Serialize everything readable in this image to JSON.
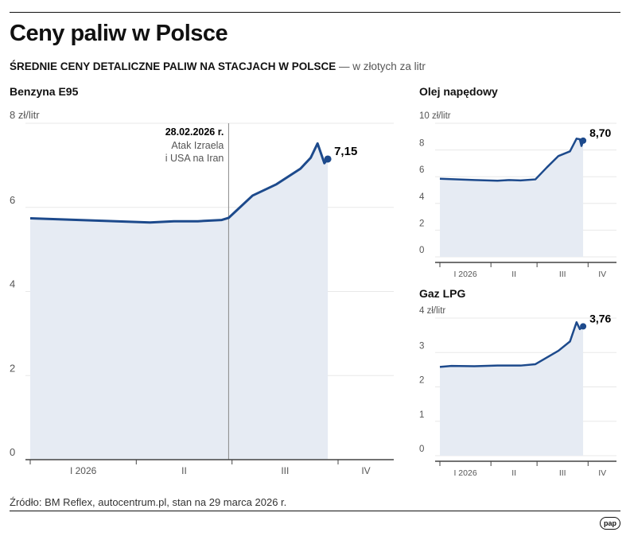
{
  "title": "Ceny paliw w Polsce",
  "subtitle": "ŚREDNIE CENY DETALICZNE PALIW NA STACJACH W POLSCE",
  "subtitle_unit": "— w złotych za litr",
  "source": "Źródło: BM Reflex, autocentrum.pl, stan na 29 marca 2026 r.",
  "logo": "pap",
  "colors": {
    "line": "#1d4a8c",
    "fill": "#e6ebf3",
    "grid": "#e8e8e8"
  },
  "chart_data": [
    {
      "type": "area",
      "title": "Benzyna E95",
      "unit_label": "8 zł/litr",
      "ylim": [
        0,
        8
      ],
      "yticks": [
        "0",
        "2",
        "4",
        "6"
      ],
      "xticks": [
        "I 2026",
        "II",
        "III",
        "IV"
      ],
      "x": [
        "2026-01-01",
        "2026-01-22",
        "2026-02-05",
        "2026-02-12",
        "2026-02-19",
        "2026-02-26",
        "2026-02-28",
        "2026-03-07",
        "2026-03-14",
        "2026-03-21",
        "2026-03-24",
        "2026-03-26",
        "2026-03-28",
        "2026-03-29"
      ],
      "values": [
        5.74,
        5.68,
        5.64,
        5.67,
        5.67,
        5.7,
        5.75,
        6.28,
        6.55,
        6.92,
        7.18,
        7.52,
        7.05,
        7.15
      ],
      "last_label": "7,15",
      "annotation": {
        "date": "2026-02-28",
        "title": "28.02.2026 r.",
        "line1": "Atak Izraela",
        "line2": "i USA na Iran"
      }
    },
    {
      "type": "area",
      "title": "Olej napędowy",
      "unit_label": "10 zł/litr",
      "ylim": [
        0,
        10
      ],
      "yticks": [
        "0",
        "2",
        "4",
        "6",
        "8"
      ],
      "xticks": [
        "I 2026",
        "II",
        "III",
        "IV"
      ],
      "x": [
        "2026-01-01",
        "2026-01-22",
        "2026-02-05",
        "2026-02-12",
        "2026-02-19",
        "2026-02-28",
        "2026-03-07",
        "2026-03-14",
        "2026-03-21",
        "2026-03-25",
        "2026-03-27",
        "2026-03-28",
        "2026-03-29"
      ],
      "values": [
        5.85,
        5.75,
        5.7,
        5.75,
        5.72,
        5.8,
        6.7,
        7.55,
        7.9,
        8.85,
        8.8,
        8.3,
        8.7
      ],
      "last_label": "8,70"
    },
    {
      "type": "area",
      "title": "Gaz LPG",
      "unit_label": "4 zł/litr",
      "ylim": [
        0,
        4
      ],
      "yticks": [
        "0",
        "1",
        "2",
        "3"
      ],
      "xticks": [
        "I 2026",
        "II",
        "III",
        "IV"
      ],
      "x": [
        "2026-01-01",
        "2026-01-08",
        "2026-01-22",
        "2026-02-05",
        "2026-02-12",
        "2026-02-19",
        "2026-02-28",
        "2026-03-14",
        "2026-03-21",
        "2026-03-25",
        "2026-03-27",
        "2026-03-28",
        "2026-03-29"
      ],
      "values": [
        2.58,
        2.61,
        2.6,
        2.62,
        2.62,
        2.62,
        2.66,
        3.05,
        3.32,
        3.88,
        3.68,
        3.72,
        3.76
      ],
      "last_label": "3,76"
    }
  ]
}
